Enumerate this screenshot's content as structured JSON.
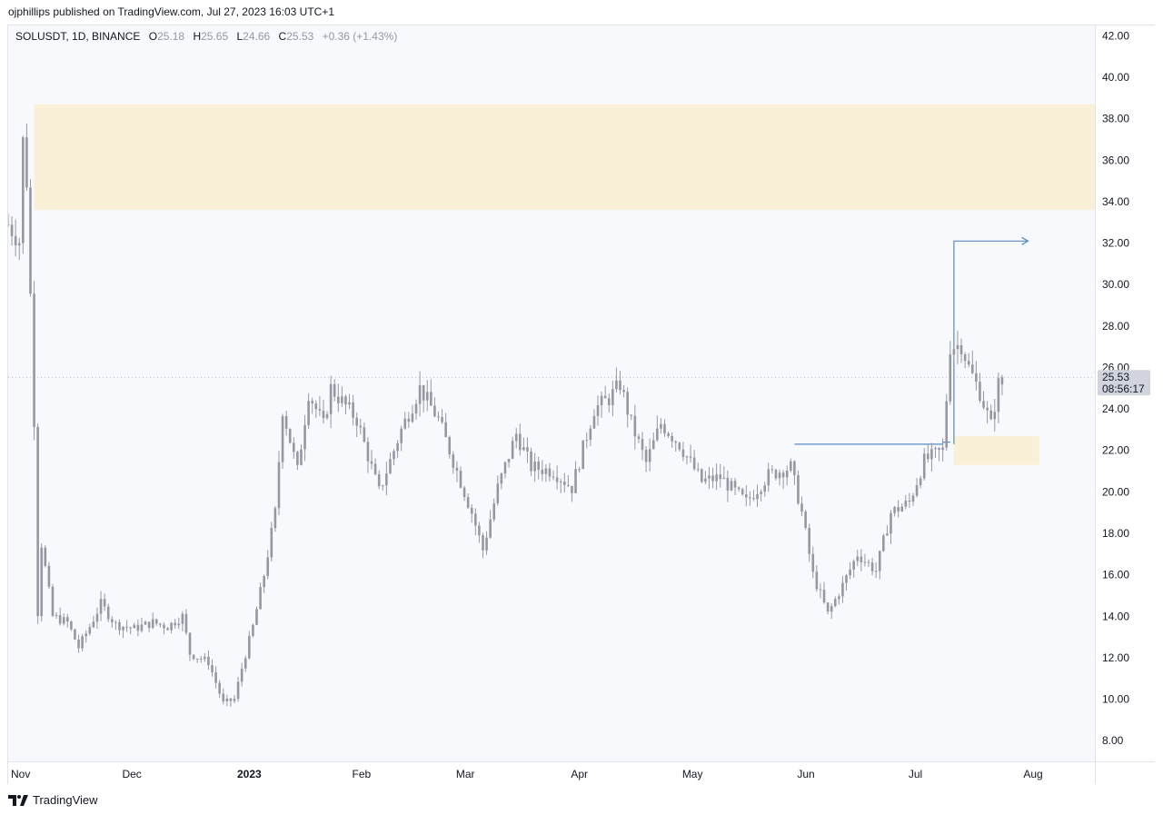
{
  "publisher_line": "ojphillips published on TradingView.com, Jul 27, 2023 16:03 UTC+1",
  "legend": {
    "symbol": "SOLUSDT, 1D, BINANCE",
    "o_label": "O",
    "o": "25.18",
    "h_label": "H",
    "h": "25.65",
    "l_label": "L",
    "l": "24.66",
    "c_label": "C",
    "c": "25.53",
    "change": "+0.36 (+1.43%)"
  },
  "footer_brand": "TradingView",
  "colors": {
    "candle": "#9598a1",
    "zone": "#faefd7",
    "arrow": "#5b8cc1",
    "label_bg": "#d1d4dc"
  },
  "chart_data": {
    "type": "candlestick",
    "ylim": [
      7,
      42.5
    ],
    "yticks": [
      "42.00",
      "40.00",
      "38.00",
      "36.00",
      "34.00",
      "32.00",
      "30.00",
      "28.00",
      "26.00",
      "24.00",
      "22.00",
      "20.00",
      "18.00",
      "16.00",
      "14.00",
      "12.00",
      "10.00",
      "8.00"
    ],
    "x_start": "2022-11-01",
    "x_end": "2023-08-21",
    "xticks": [
      {
        "label": "Nov",
        "date": "2022-11-01",
        "bold": false
      },
      {
        "label": "Dec",
        "date": "2022-12-01",
        "bold": false
      },
      {
        "label": "2023",
        "date": "2023-01-01",
        "bold": true
      },
      {
        "label": "Feb",
        "date": "2023-02-01",
        "bold": false
      },
      {
        "label": "Mar",
        "date": "2023-03-01",
        "bold": false
      },
      {
        "label": "Apr",
        "date": "2023-04-01",
        "bold": false
      },
      {
        "label": "May",
        "date": "2023-05-01",
        "bold": false
      },
      {
        "label": "Jun",
        "date": "2023-06-01",
        "bold": false
      },
      {
        "label": "Jul",
        "date": "2023-07-01",
        "bold": false
      },
      {
        "label": "Aug",
        "date": "2023-08-01",
        "bold": false
      }
    ],
    "last_price": "25.53",
    "countdown": "08:56:17",
    "zones": [
      {
        "from": "2022-11-08",
        "to": "2023-08-21",
        "low": 33.6,
        "high": 38.7
      },
      {
        "from": "2023-07-14",
        "to": "2023-08-06",
        "low": 21.3,
        "high": 22.7
      }
    ],
    "arrows": [
      {
        "points": [
          [
            "2023-07-14",
            22.3
          ],
          [
            "2023-07-14",
            32.1
          ],
          [
            "2023-08-03",
            32.1
          ]
        ]
      }
    ],
    "hlines": [
      {
        "points": [
          [
            "2023-06-01",
            22.3
          ],
          [
            "2023-07-11",
            22.3
          ],
          [
            "2023-07-11",
            22.4
          ],
          [
            "2023-07-13",
            22.4
          ]
        ]
      }
    ],
    "series_close": [
      [
        "2022-11-01",
        32.9
      ],
      [
        "2022-11-04",
        32.1
      ],
      [
        "2022-11-05",
        36.9
      ],
      [
        "2022-11-06",
        35.0
      ],
      [
        "2022-11-07",
        29.5
      ],
      [
        "2022-11-08",
        23.5
      ],
      [
        "2022-11-09",
        14.2
      ],
      [
        "2022-11-10",
        17.5
      ],
      [
        "2022-11-13",
        14.0
      ],
      [
        "2022-11-17",
        13.7
      ],
      [
        "2022-11-20",
        12.5
      ],
      [
        "2022-11-23",
        13.5
      ],
      [
        "2022-11-26",
        14.6
      ],
      [
        "2022-11-30",
        13.6
      ],
      [
        "2022-12-05",
        13.4
      ],
      [
        "2022-12-10",
        13.7
      ],
      [
        "2022-12-14",
        13.5
      ],
      [
        "2022-12-18",
        14.0
      ],
      [
        "2022-12-20",
        12.2
      ],
      [
        "2022-12-25",
        11.8
      ],
      [
        "2022-12-29",
        9.8
      ],
      [
        "2023-01-01",
        10.0
      ],
      [
        "2023-01-03",
        11.5
      ],
      [
        "2023-01-06",
        13.5
      ],
      [
        "2023-01-09",
        16.0
      ],
      [
        "2023-01-12",
        19.0
      ],
      [
        "2023-01-14",
        24.0
      ],
      [
        "2023-01-18",
        21.0
      ],
      [
        "2023-01-21",
        24.8
      ],
      [
        "2023-01-25",
        23.2
      ],
      [
        "2023-01-27",
        25.0
      ],
      [
        "2023-02-03",
        23.5
      ],
      [
        "2023-02-09",
        20.0
      ],
      [
        "2023-02-15",
        23.0
      ],
      [
        "2023-02-20",
        25.0
      ],
      [
        "2023-02-25",
        23.5
      ],
      [
        "2023-03-01",
        21.5
      ],
      [
        "2023-03-06",
        19.0
      ],
      [
        "2023-03-09",
        17.2
      ],
      [
        "2023-03-13",
        20.2
      ],
      [
        "2023-03-18",
        22.8
      ],
      [
        "2023-03-22",
        21.2
      ],
      [
        "2023-03-28",
        21.0
      ],
      [
        "2023-04-02",
        20.2
      ],
      [
        "2023-04-08",
        24.0
      ],
      [
        "2023-04-12",
        24.5
      ],
      [
        "2023-04-15",
        25.2
      ],
      [
        "2023-04-18",
        23.3
      ],
      [
        "2023-04-22",
        21.4
      ],
      [
        "2023-04-26",
        23.3
      ],
      [
        "2023-05-01",
        22.3
      ],
      [
        "2023-05-07",
        20.5
      ],
      [
        "2023-05-12",
        20.7
      ],
      [
        "2023-05-19",
        19.5
      ],
      [
        "2023-05-25",
        20.8
      ],
      [
        "2023-05-31",
        21.2
      ],
      [
        "2023-06-03",
        19.0
      ],
      [
        "2023-06-06",
        16.0
      ],
      [
        "2023-06-10",
        14.1
      ],
      [
        "2023-06-14",
        15.5
      ],
      [
        "2023-06-18",
        17.0
      ],
      [
        "2023-06-23",
        16.2
      ],
      [
        "2023-06-27",
        19.0
      ],
      [
        "2023-07-02",
        19.5
      ],
      [
        "2023-07-06",
        21.5
      ],
      [
        "2023-07-11",
        22.0
      ],
      [
        "2023-07-13",
        27.0
      ],
      [
        "2023-07-16",
        27.1
      ],
      [
        "2023-07-18",
        26.0
      ],
      [
        "2023-07-21",
        24.8
      ],
      [
        "2023-07-24",
        23.2
      ],
      [
        "2023-07-26",
        25.2
      ],
      [
        "2023-07-27",
        25.53
      ]
    ]
  }
}
